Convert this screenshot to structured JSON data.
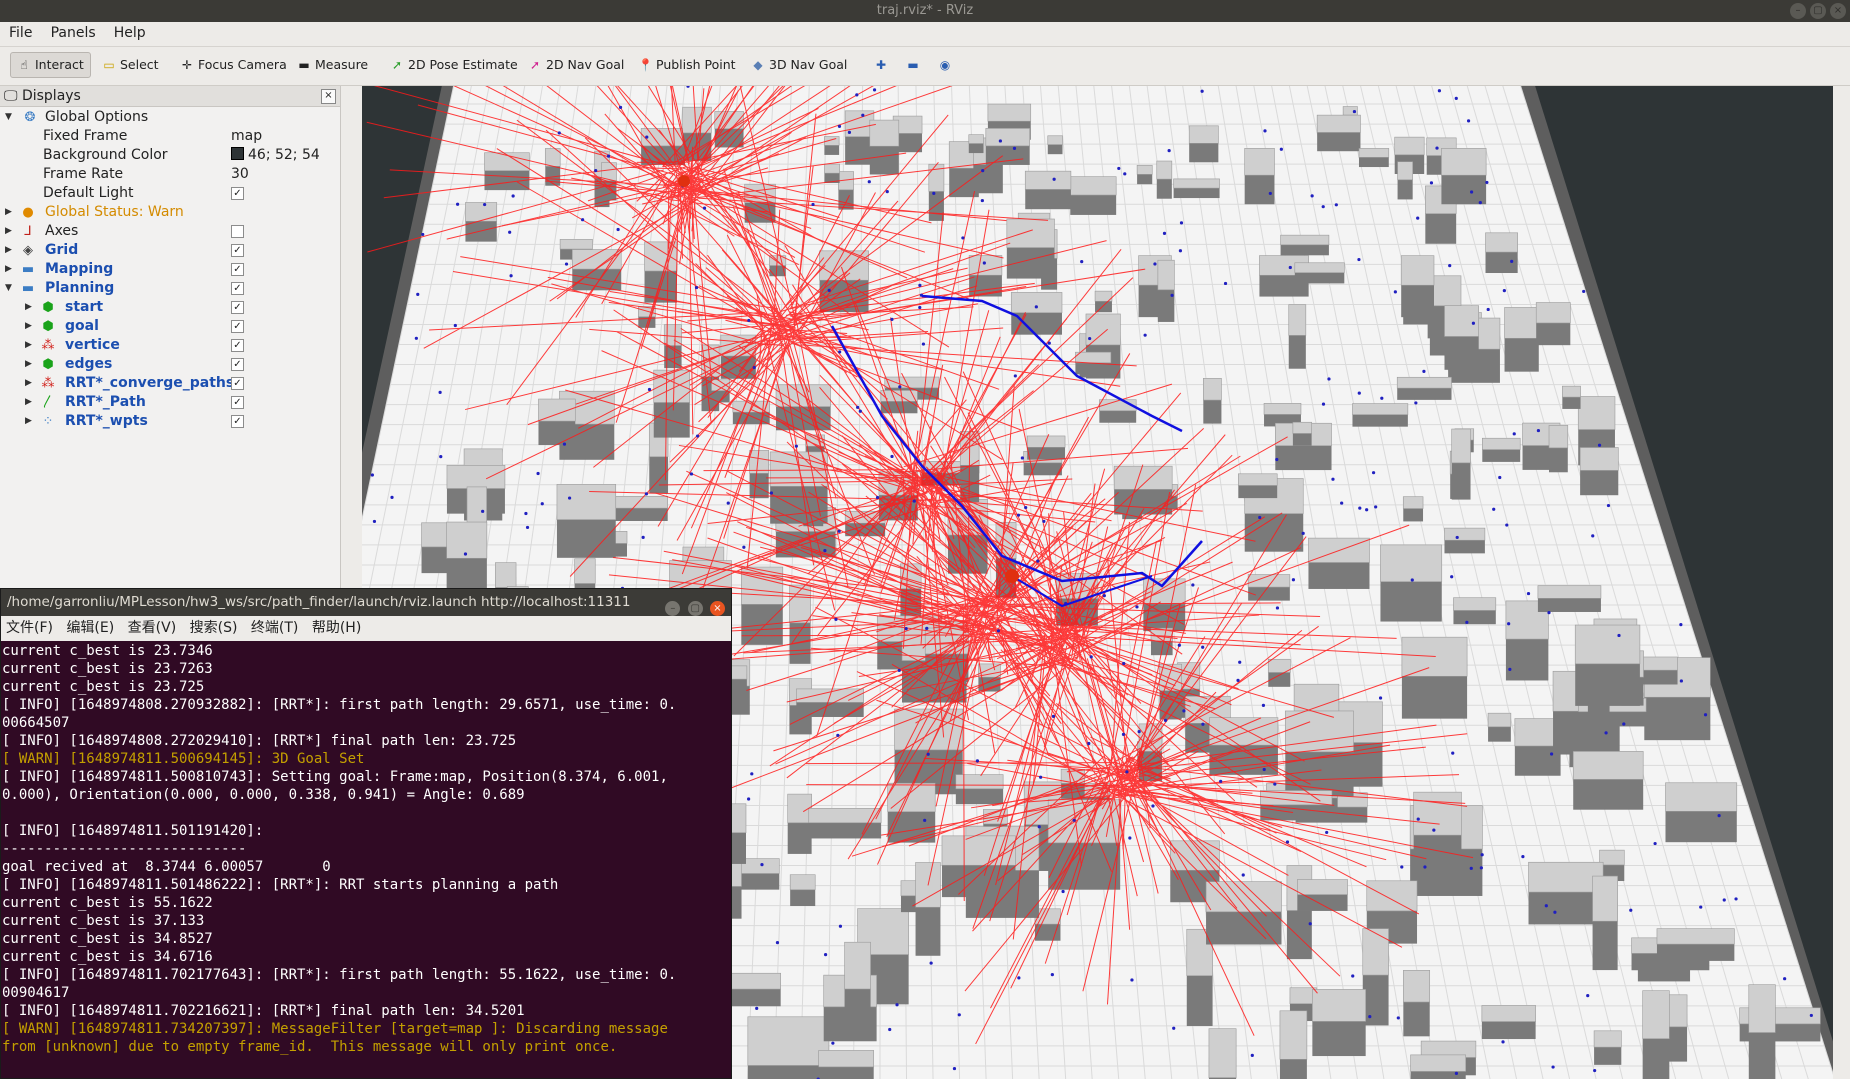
{
  "window": {
    "title": "traj.rviz* - RViz"
  },
  "menubar": {
    "items": [
      "File",
      "Panels",
      "Help"
    ]
  },
  "toolbar": {
    "tools": [
      {
        "label": "Interact",
        "icon": "hand-icon"
      },
      {
        "label": "Select",
        "icon": "select-box-icon"
      },
      {
        "label": "Focus Camera",
        "icon": "crosshair-icon"
      },
      {
        "label": "Measure",
        "icon": "ruler-icon"
      },
      {
        "label": "2D Pose Estimate",
        "icon": "green-arrow-icon"
      },
      {
        "label": "2D Nav Goal",
        "icon": "pink-arrow-icon"
      },
      {
        "label": "Publish Point",
        "icon": "pin-icon"
      },
      {
        "label": "3D Nav Goal",
        "icon": "diamond-icon"
      }
    ],
    "active_tool": "Interact"
  },
  "displays": {
    "title": "Displays",
    "global_options": {
      "label": "Global Options",
      "fixed_frame_label": "Fixed Frame",
      "fixed_frame_value": "map",
      "bg_color_label": "Background Color",
      "bg_color_value": "46; 52; 54",
      "bg_color_hex": "#2e3436",
      "frame_rate_label": "Frame Rate",
      "frame_rate_value": "30",
      "default_light_label": "Default Light",
      "default_light_checked": true
    },
    "global_status": "Global Status: Warn",
    "items": [
      {
        "label": "Axes",
        "checked": false,
        "icon": "axes-icon"
      },
      {
        "label": "Grid",
        "checked": true,
        "icon": "grid-icon"
      },
      {
        "label": "Mapping",
        "checked": true,
        "icon": "folder-icon"
      },
      {
        "label": "Planning",
        "checked": true,
        "icon": "folder-icon"
      }
    ],
    "planning_children": [
      {
        "label": "start",
        "checked": true,
        "icon": "cube-green-icon"
      },
      {
        "label": "goal",
        "checked": true,
        "icon": "cube-green-icon"
      },
      {
        "label": "vertice",
        "checked": true,
        "icon": "marker-array-icon"
      },
      {
        "label": "edges",
        "checked": true,
        "icon": "cube-green-icon"
      },
      {
        "label": "RRT*_converge_paths",
        "checked": true,
        "icon": "marker-array-icon"
      },
      {
        "label": "RRT*_Path",
        "checked": true,
        "icon": "path-icon"
      },
      {
        "label": "RRT*_wpts",
        "checked": true,
        "icon": "pointcloud-icon"
      }
    ]
  },
  "terminal": {
    "title": "/home/garronliu/MPLesson/hw3_ws/src/path_finder/launch/rviz.launch http://localhost:11311",
    "menu": [
      "文件(F)",
      "编辑(E)",
      "查看(V)",
      "搜索(S)",
      "终端(T)",
      "帮助(H)"
    ],
    "lines": [
      {
        "text": "current c_best is 23.7346",
        "warn": false
      },
      {
        "text": "current c_best is 23.7263",
        "warn": false
      },
      {
        "text": "current c_best is 23.725",
        "warn": false
      },
      {
        "text": "[ INFO] [1648974808.270932882]: [RRT*]: first path length: 29.6571, use_time: 0.",
        "warn": false
      },
      {
        "text": "00664507",
        "warn": false
      },
      {
        "text": "[ INFO] [1648974808.272029410]: [RRT*] final path len: 23.725",
        "warn": false
      },
      {
        "text": "[ WARN] [1648974811.500694145]: 3D Goal Set",
        "warn": true
      },
      {
        "text": "[ INFO] [1648974811.500810743]: Setting goal: Frame:map, Position(8.374, 6.001,",
        "warn": false
      },
      {
        "text": "0.000), Orientation(0.000, 0.000, 0.338, 0.941) = Angle: 0.689",
        "warn": false
      },
      {
        "text": "",
        "warn": false
      },
      {
        "text": "[ INFO] [1648974811.501191420]:",
        "warn": false
      },
      {
        "text": "-----------------------------",
        "warn": false
      },
      {
        "text": "goal recived at  8.3744 6.00057       0",
        "warn": false
      },
      {
        "text": "[ INFO] [1648974811.501486222]: [RRT*]: RRT starts planning a path",
        "warn": false
      },
      {
        "text": "current c_best is 55.1622",
        "warn": false
      },
      {
        "text": "current c_best is 37.133",
        "warn": false
      },
      {
        "text": "current c_best is 34.8527",
        "warn": false
      },
      {
        "text": "current c_best is 34.6716",
        "warn": false
      },
      {
        "text": "[ INFO] [1648974811.702177643]: [RRT*]: first path length: 55.1622, use_time: 0.",
        "warn": false
      },
      {
        "text": "00904617",
        "warn": false
      },
      {
        "text": "[ INFO] [1648974811.702216621]: [RRT*] final path len: 34.5201",
        "warn": false
      },
      {
        "text": "[ WARN] [1648974811.734207397]: MessageFilter [target=map ]: Discarding message",
        "warn": true
      },
      {
        "text": "from [unknown] due to empty frame_id.  This message will only print once.",
        "warn": true
      }
    ]
  },
  "colors": {
    "tree_edges": "#ff1a1a",
    "path": "#1010e0",
    "obstacles": "#cfcfcf",
    "floor": "#f4f4f4"
  }
}
